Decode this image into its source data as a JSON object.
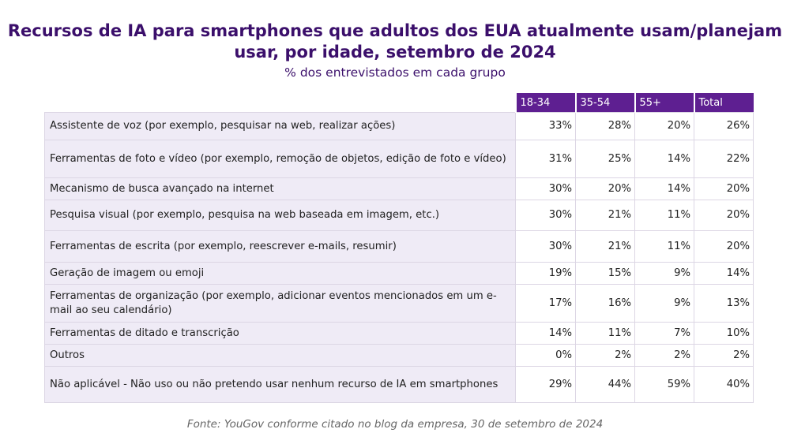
{
  "chart_data": {
    "type": "table",
    "title": "Recursos de IA para smartphones que adultos dos EUA atualmente usam/planejam usar, por idade, setembro de 2024",
    "subtitle": "% dos entrevistados em cada grupo",
    "columns": [
      "18-34",
      "35-54",
      "55+",
      "Total"
    ],
    "rows": [
      {
        "label": "Assistente de voz (por exemplo, pesquisar na web, realizar ações)",
        "values": [
          "33%",
          "28%",
          "20%",
          "26%"
        ]
      },
      {
        "label": "Ferramentas de foto e vídeo (por exemplo, remoção de objetos, edição de foto e vídeo)",
        "values": [
          "31%",
          "25%",
          "14%",
          "22%"
        ]
      },
      {
        "label": "Mecanismo de busca avançado na internet",
        "values": [
          "30%",
          "20%",
          "14%",
          "20%"
        ]
      },
      {
        "label": "Pesquisa visual (por exemplo, pesquisa na web baseada em imagem, etc.)",
        "values": [
          "30%",
          "21%",
          "11%",
          "20%"
        ]
      },
      {
        "label": "Ferramentas de escrita (por exemplo, reescrever e-mails, resumir)",
        "values": [
          "30%",
          "21%",
          "11%",
          "20%"
        ]
      },
      {
        "label": "Geração de imagem ou emoji",
        "values": [
          "19%",
          "15%",
          "9%",
          "14%"
        ]
      },
      {
        "label": "Ferramentas de organização (por exemplo, adicionar eventos mencionados em um e-mail ao seu calendário)",
        "values": [
          "17%",
          "16%",
          "9%",
          "13%"
        ]
      },
      {
        "label": "Ferramentas de ditado e transcrição",
        "values": [
          "14%",
          "11%",
          "7%",
          "10%"
        ]
      },
      {
        "label": "Outros",
        "values": [
          "0%",
          "2%",
          "2%",
          "2%"
        ]
      },
      {
        "label": "Não aplicável - Não uso ou não pretendo usar nenhum recurso de IA em smartphones",
        "values": [
          "29%",
          "44%",
          "59%",
          "40%"
        ]
      }
    ],
    "source": "Fonte: YouGov conforme citado no blog da empresa, 30 de setembro de 2024"
  },
  "colors": {
    "title": "#3b0f6b",
    "header": "#5e1f91",
    "label_bg": "#efebf6"
  }
}
